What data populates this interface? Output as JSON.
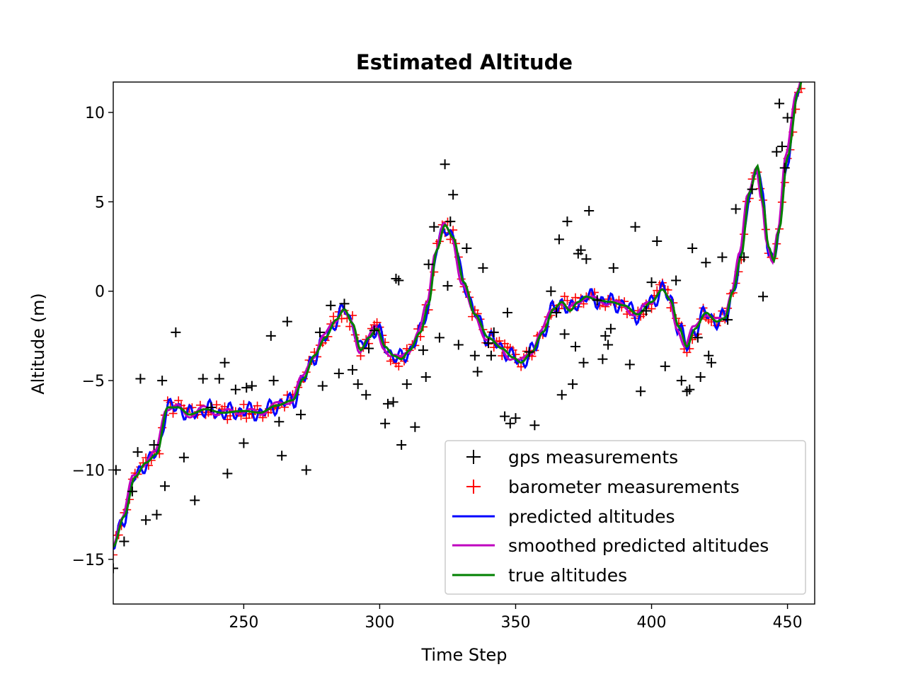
{
  "chart_data": {
    "type": "line",
    "title": "Estimated Altitude",
    "xlabel": "Time Step",
    "ylabel": "Altitude (m)",
    "xlim": [
      202,
      460
    ],
    "ylim": [
      -17.5,
      11.7
    ],
    "xticks": [
      250,
      300,
      350,
      400,
      450
    ],
    "yticks": [
      -15,
      -10,
      -5,
      0,
      5,
      10
    ],
    "xtick_labels": [
      "250",
      "300",
      "350",
      "400",
      "450"
    ],
    "ytick_labels": [
      "−15",
      "−10",
      "−5",
      "0",
      "5",
      "10"
    ],
    "grid": false,
    "legend_position": "lower-right",
    "colors": {
      "gps": "#000000",
      "barometer": "#ff0000",
      "predicted": "#0000ff",
      "smoothed": "#bf00bf",
      "true": "#008000"
    },
    "true_curve_knots": [
      [
        202,
        -14.3
      ],
      [
        206,
        -12.6
      ],
      [
        210,
        -10.4
      ],
      [
        214,
        -9.6
      ],
      [
        218,
        -9.1
      ],
      [
        222,
        -6.5
      ],
      [
        226,
        -6.5
      ],
      [
        230,
        -6.9
      ],
      [
        236,
        -6.6
      ],
      [
        242,
        -6.8
      ],
      [
        250,
        -6.7
      ],
      [
        256,
        -6.8
      ],
      [
        262,
        -6.4
      ],
      [
        268,
        -6.1
      ],
      [
        272,
        -4.9
      ],
      [
        276,
        -3.6
      ],
      [
        280,
        -2.6
      ],
      [
        284,
        -1.6
      ],
      [
        287,
        -1.0
      ],
      [
        290,
        -1.8
      ],
      [
        293,
        -3.3
      ],
      [
        296,
        -2.6
      ],
      [
        299,
        -2.1
      ],
      [
        302,
        -3.1
      ],
      [
        305,
        -3.6
      ],
      [
        308,
        -3.8
      ],
      [
        311,
        -3.3
      ],
      [
        315,
        -2.3
      ],
      [
        318,
        -0.7
      ],
      [
        321,
        2.3
      ],
      [
        324,
        3.7
      ],
      [
        327,
        3.0
      ],
      [
        331,
        0.5
      ],
      [
        335,
        -1.3
      ],
      [
        340,
        -2.6
      ],
      [
        345,
        -3.2
      ],
      [
        349,
        -3.7
      ],
      [
        352,
        -4.0
      ],
      [
        356,
        -3.4
      ],
      [
        360,
        -2.3
      ],
      [
        364,
        -1.0
      ],
      [
        367,
        -0.6
      ],
      [
        370,
        -1.1
      ],
      [
        373,
        -0.6
      ],
      [
        376,
        -0.3
      ],
      [
        380,
        -0.5
      ],
      [
        385,
        -0.6
      ],
      [
        390,
        -0.8
      ],
      [
        395,
        -1.3
      ],
      [
        400,
        -0.6
      ],
      [
        404,
        0.1
      ],
      [
        407,
        -0.5
      ],
      [
        410,
        -2.0
      ],
      [
        413,
        -3.1
      ],
      [
        416,
        -2.1
      ],
      [
        420,
        -1.2
      ],
      [
        424,
        -1.7
      ],
      [
        427,
        -1.5
      ],
      [
        430,
        0.0
      ],
      [
        433,
        2.0
      ],
      [
        436,
        5.5
      ],
      [
        439,
        7.0
      ],
      [
        441,
        5.0
      ],
      [
        443,
        2.5
      ],
      [
        445,
        1.7
      ],
      [
        447,
        3.5
      ],
      [
        450,
        7.5
      ],
      [
        454,
        11.2
      ],
      [
        456,
        12.2
      ]
    ],
    "gps_points": [
      [
        202,
        -15.5
      ],
      [
        203,
        -10.0
      ],
      [
        206,
        -14.0
      ],
      [
        209,
        -11.2
      ],
      [
        211,
        -9.0
      ],
      [
        212,
        -4.9
      ],
      [
        214,
        -12.8
      ],
      [
        217,
        -8.6
      ],
      [
        218,
        -12.5
      ],
      [
        220,
        -5.0
      ],
      [
        221,
        -10.9
      ],
      [
        225,
        -2.3
      ],
      [
        228,
        -9.3
      ],
      [
        232,
        -11.7
      ],
      [
        235,
        -4.9
      ],
      [
        238,
        -6.5
      ],
      [
        241,
        -4.9
      ],
      [
        243,
        -4.0
      ],
      [
        244,
        -10.2
      ],
      [
        247,
        -5.5
      ],
      [
        250,
        -8.5
      ],
      [
        251,
        -5.4
      ],
      [
        253,
        -5.3
      ],
      [
        260,
        -2.5
      ],
      [
        261,
        -5.0
      ],
      [
        263,
        -7.3
      ],
      [
        264,
        -9.2
      ],
      [
        266,
        -1.7
      ],
      [
        271,
        -6.9
      ],
      [
        273,
        -10.0
      ],
      [
        278,
        -2.3
      ],
      [
        279,
        -5.3
      ],
      [
        282,
        -0.8
      ],
      [
        285,
        -4.6
      ],
      [
        287,
        -0.7
      ],
      [
        290,
        -4.4
      ],
      [
        292,
        -5.2
      ],
      [
        295,
        -5.8
      ],
      [
        296,
        -3.2
      ],
      [
        298,
        -2.2
      ],
      [
        302,
        -7.4
      ],
      [
        303,
        -6.3
      ],
      [
        305,
        -6.2
      ],
      [
        306,
        0.7
      ],
      [
        307,
        0.6
      ],
      [
        308,
        -8.6
      ],
      [
        310,
        -5.2
      ],
      [
        313,
        -7.6
      ],
      [
        316,
        -3.3
      ],
      [
        317,
        -4.8
      ],
      [
        318,
        1.5
      ],
      [
        320,
        3.6
      ],
      [
        322,
        -2.6
      ],
      [
        324,
        7.1
      ],
      [
        325,
        0.3
      ],
      [
        326,
        3.9
      ],
      [
        327,
        5.4
      ],
      [
        329,
        -3.0
      ],
      [
        332,
        2.4
      ],
      [
        335,
        -3.6
      ],
      [
        336,
        -4.5
      ],
      [
        338,
        1.3
      ],
      [
        340,
        -2.9
      ],
      [
        341,
        -3.6
      ],
      [
        342,
        -2.3
      ],
      [
        346,
        -7.0
      ],
      [
        347,
        -1.2
      ],
      [
        348,
        -7.4
      ],
      [
        350,
        -7.1
      ],
      [
        355,
        -3.4
      ],
      [
        357,
        -7.5
      ],
      [
        363,
        0.0
      ],
      [
        365,
        -1.2
      ],
      [
        366,
        2.9
      ],
      [
        367,
        -5.8
      ],
      [
        368,
        -2.4
      ],
      [
        369,
        3.9
      ],
      [
        371,
        -5.2
      ],
      [
        372,
        -3.1
      ],
      [
        373,
        2.1
      ],
      [
        374,
        2.3
      ],
      [
        375,
        -4.0
      ],
      [
        376,
        1.8
      ],
      [
        377,
        4.5
      ],
      [
        380,
        -0.5
      ],
      [
        382,
        -3.8
      ],
      [
        383,
        -2.5
      ],
      [
        384,
        -3.0
      ],
      [
        385,
        -2.1
      ],
      [
        386,
        1.3
      ],
      [
        392,
        -4.1
      ],
      [
        394,
        3.6
      ],
      [
        396,
        -5.6
      ],
      [
        398,
        -1.1
      ],
      [
        400,
        0.5
      ],
      [
        402,
        2.8
      ],
      [
        405,
        -4.2
      ],
      [
        409,
        0.6
      ],
      [
        411,
        -5.0
      ],
      [
        413,
        -5.6
      ],
      [
        414,
        -5.5
      ],
      [
        415,
        2.4
      ],
      [
        417,
        -2.6
      ],
      [
        418,
        -4.8
      ],
      [
        420,
        1.6
      ],
      [
        421,
        -3.6
      ],
      [
        422,
        -4.0
      ],
      [
        426,
        1.9
      ],
      [
        428,
        -1.6
      ],
      [
        431,
        4.6
      ],
      [
        434,
        1.9
      ],
      [
        437,
        5.7
      ],
      [
        441,
        -0.3
      ],
      [
        446,
        7.8
      ],
      [
        447,
        10.5
      ],
      [
        448,
        8.1
      ],
      [
        449,
        6.9
      ],
      [
        450,
        9.7
      ]
    ]
  },
  "legend": {
    "items": [
      {
        "label": "gps measurements",
        "type": "marker",
        "color": "#000000"
      },
      {
        "label": "barometer measurements",
        "type": "marker",
        "color": "#ff0000"
      },
      {
        "label": "predicted altitudes",
        "type": "line",
        "color": "#0000ff"
      },
      {
        "label": "smoothed predicted altitudes",
        "type": "line",
        "color": "#bf00bf"
      },
      {
        "label": "true altitudes",
        "type": "line",
        "color": "#008000"
      }
    ]
  }
}
